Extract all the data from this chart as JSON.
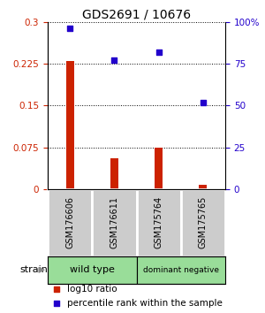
{
  "title": "GDS2691 / 10676",
  "samples": [
    "GSM176606",
    "GSM176611",
    "GSM175764",
    "GSM175765"
  ],
  "log10_ratio": [
    0.23,
    0.055,
    0.075,
    0.008
  ],
  "percentile_rank": [
    96,
    77,
    82,
    52
  ],
  "left_yticks": [
    0,
    0.075,
    0.15,
    0.225,
    0.3
  ],
  "left_ytick_labels": [
    "0",
    "0.075",
    "0.15",
    "0.225",
    "0.3"
  ],
  "right_yticks": [
    0,
    25,
    50,
    75,
    100
  ],
  "right_ytick_labels": [
    "0",
    "25",
    "50",
    "75",
    "100%"
  ],
  "left_ylim": [
    0,
    0.3
  ],
  "right_ylim": [
    0,
    100
  ],
  "bar_color": "#cc2200",
  "point_color": "#2200cc",
  "bar_width": 0.18,
  "group_bg": "#cccccc",
  "group_green": "#99dd99",
  "legend_ratio_label": "log10 ratio",
  "legend_pct_label": "percentile rank within the sample",
  "strain_label": "strain",
  "wild_type_label": "wild type",
  "dominant_neg_label": "dominant negative",
  "title_fontsize": 10,
  "tick_fontsize": 7.5,
  "sample_fontsize": 7,
  "group_fontsize": 8,
  "legend_fontsize": 7.5
}
